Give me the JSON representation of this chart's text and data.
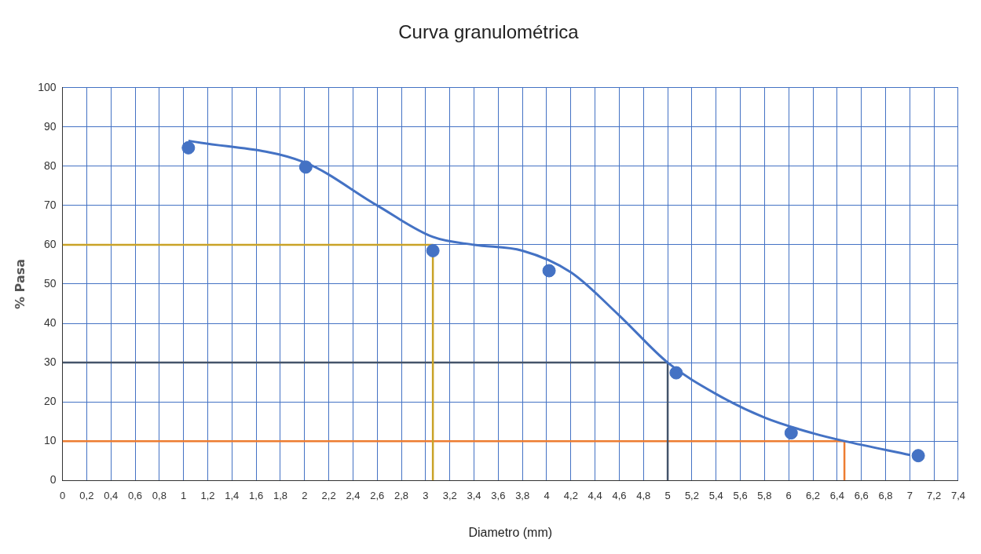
{
  "chart_data": {
    "type": "scatter",
    "title": "Curva granulométrica",
    "xlabel": "Diametro (mm)",
    "ylabel": "% Pasa",
    "xlim": [
      0,
      7.4
    ],
    "ylim": [
      0,
      100
    ],
    "xticks": [
      0,
      {
        "value": 0.2,
        "label": "0,2"
      },
      {
        "value": 0.4,
        "label": "0,4"
      },
      {
        "value": 0.6,
        "label": "0,6"
      },
      {
        "value": 0.8,
        "label": "0,8"
      },
      1,
      {
        "value": 1.2,
        "label": "1,2"
      },
      {
        "value": 1.4,
        "label": "1,4"
      },
      {
        "value": 1.6,
        "label": "1,6"
      },
      {
        "value": 1.8,
        "label": "1,8"
      },
      2,
      {
        "value": 2.2,
        "label": "2,2"
      },
      {
        "value": 2.4,
        "label": "2,4"
      },
      {
        "value": 2.6,
        "label": "2,6"
      },
      {
        "value": 2.8,
        "label": "2,8"
      },
      3,
      {
        "value": 3.2,
        "label": "3,2"
      },
      {
        "value": 3.4,
        "label": "3,4"
      },
      {
        "value": 3.6,
        "label": "3,6"
      },
      {
        "value": 3.8,
        "label": "3,8"
      },
      4,
      {
        "value": 4.2,
        "label": "4,2"
      },
      {
        "value": 4.4,
        "label": "4,4"
      },
      {
        "value": 4.6,
        "label": "4,6"
      },
      {
        "value": 4.8,
        "label": "4,8"
      },
      5,
      {
        "value": 5.2,
        "label": "5,2"
      },
      {
        "value": 5.4,
        "label": "5,4"
      },
      {
        "value": 5.6,
        "label": "5,6"
      },
      {
        "value": 5.8,
        "label": "5,8"
      },
      6,
      {
        "value": 6.2,
        "label": "6,2"
      },
      {
        "value": 6.4,
        "label": "6,4"
      },
      {
        "value": 6.6,
        "label": "6,6"
      },
      {
        "value": 6.8,
        "label": "6,8"
      },
      7,
      {
        "value": 7.2,
        "label": "7,2"
      },
      {
        "value": 7.4,
        "label": "7,4"
      }
    ],
    "yticks": [
      0,
      10,
      20,
      30,
      40,
      50,
      60,
      70,
      80,
      90,
      100
    ],
    "grid": true,
    "legend": false,
    "series": [
      {
        "type": "line",
        "marker": "none",
        "color": "#4472c4",
        "x": [
          1.04,
          2.0,
          2.6,
          3.06,
          3.4,
          3.8,
          4.2,
          4.6,
          5.0,
          5.4,
          5.8,
          6.2,
          6.46,
          7.0
        ],
        "values": [
          86.5,
          81,
          70,
          62,
          60,
          58.5,
          53,
          42,
          30,
          22,
          16,
          12,
          10,
          6.5
        ]
      },
      {
        "marker": "circle",
        "color": "#4472c4",
        "x": [
          1.04,
          2.01,
          3.06,
          4.02,
          5.07,
          6.02,
          7.07
        ],
        "values": [
          84.7,
          79.8,
          58.5,
          53.4,
          27.4,
          12.1,
          6.3
        ]
      },
      {
        "type": "line",
        "marker": "none",
        "color": "#c9a227",
        "x": [
          0,
          3.06,
          3.06
        ],
        "values": [
          60,
          60,
          0
        ]
      },
      {
        "type": "line",
        "marker": "none",
        "color": "#44546a",
        "x": [
          0,
          5.0,
          5.0
        ],
        "values": [
          30,
          30,
          0
        ]
      },
      {
        "type": "line",
        "marker": "none",
        "color": "#ed7d31",
        "x": [
          0,
          6.46,
          6.46
        ],
        "values": [
          10,
          10,
          0
        ]
      }
    ]
  }
}
